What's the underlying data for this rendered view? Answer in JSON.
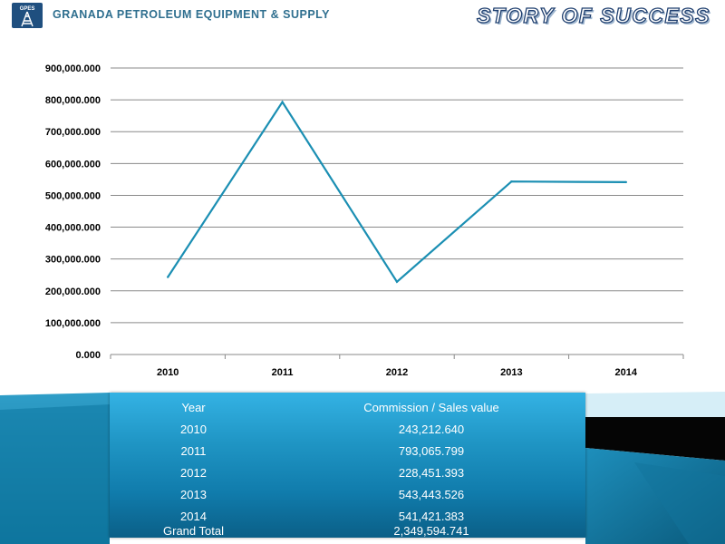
{
  "header": {
    "logo_text": "GPES",
    "company": "GRANADA PETROLEUM EQUIPMENT & SUPPLY",
    "slogan": "STORY OF SUCCESS"
  },
  "colors": {
    "line": "#1b8fb3",
    "header_text": "#2f6f8f",
    "table_bg_top": "#34b2e4",
    "table_bg_bottom": "#0b5f87"
  },
  "chart_data": {
    "type": "line",
    "title": "",
    "xlabel": "",
    "ylabel": "",
    "categories": [
      "2010",
      "2011",
      "2012",
      "2013",
      "2014"
    ],
    "values": [
      243212.64,
      793065.799,
      228451.393,
      543443.526,
      541421.383
    ],
    "ylim": [
      0,
      900000
    ],
    "yticks": [
      "0.000",
      "100,000.000",
      "200,000.000",
      "300,000.000",
      "400,000.000",
      "500,000.000",
      "600,000.000",
      "700,000.000",
      "800,000.000",
      "900,000.000"
    ],
    "grid": true,
    "legend": "none"
  },
  "table": {
    "headers": [
      "Year",
      "Commission / Sales value"
    ],
    "rows": [
      [
        "2010",
        "243,212.640"
      ],
      [
        "2011",
        "793,065.799"
      ],
      [
        "2012",
        "228,451.393"
      ],
      [
        "2013",
        "543,443.526"
      ],
      [
        "2014",
        "541,421.383"
      ]
    ],
    "total_label": "Grand Total",
    "total_value": "2,349,594.741"
  }
}
